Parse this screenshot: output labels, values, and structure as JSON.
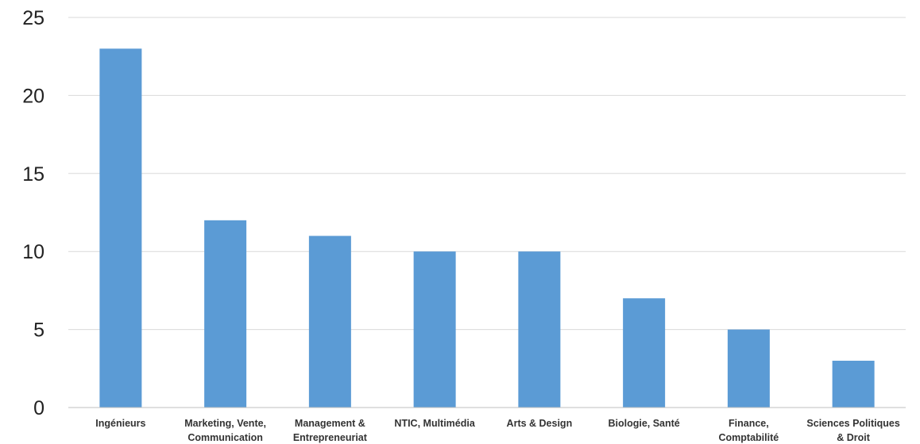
{
  "chart_data": {
    "type": "bar",
    "title": "",
    "xlabel": "",
    "ylabel": "",
    "categories": [
      [
        "Ingénieurs"
      ],
      [
        "Marketing, Vente,",
        "Communication"
      ],
      [
        "Management &",
        "Entrepreneuriat"
      ],
      [
        "NTIC, Multimédia"
      ],
      [
        "Arts & Design"
      ],
      [
        "Biologie, Santé"
      ],
      [
        "Finance,",
        "Comptabilité"
      ],
      [
        "Sciences Politiques",
        "& Droit"
      ]
    ],
    "values": [
      23,
      12,
      11,
      10,
      10,
      7,
      5,
      3
    ],
    "ylim": [
      0,
      25
    ],
    "yticks": [
      "0",
      "5",
      "10",
      "15",
      "20",
      "25"
    ],
    "grid": true,
    "legend": "none",
    "colors": {
      "bar": "#5b9bd5",
      "grid": "#d9d9d9",
      "axis": "#bfbfbf"
    }
  }
}
